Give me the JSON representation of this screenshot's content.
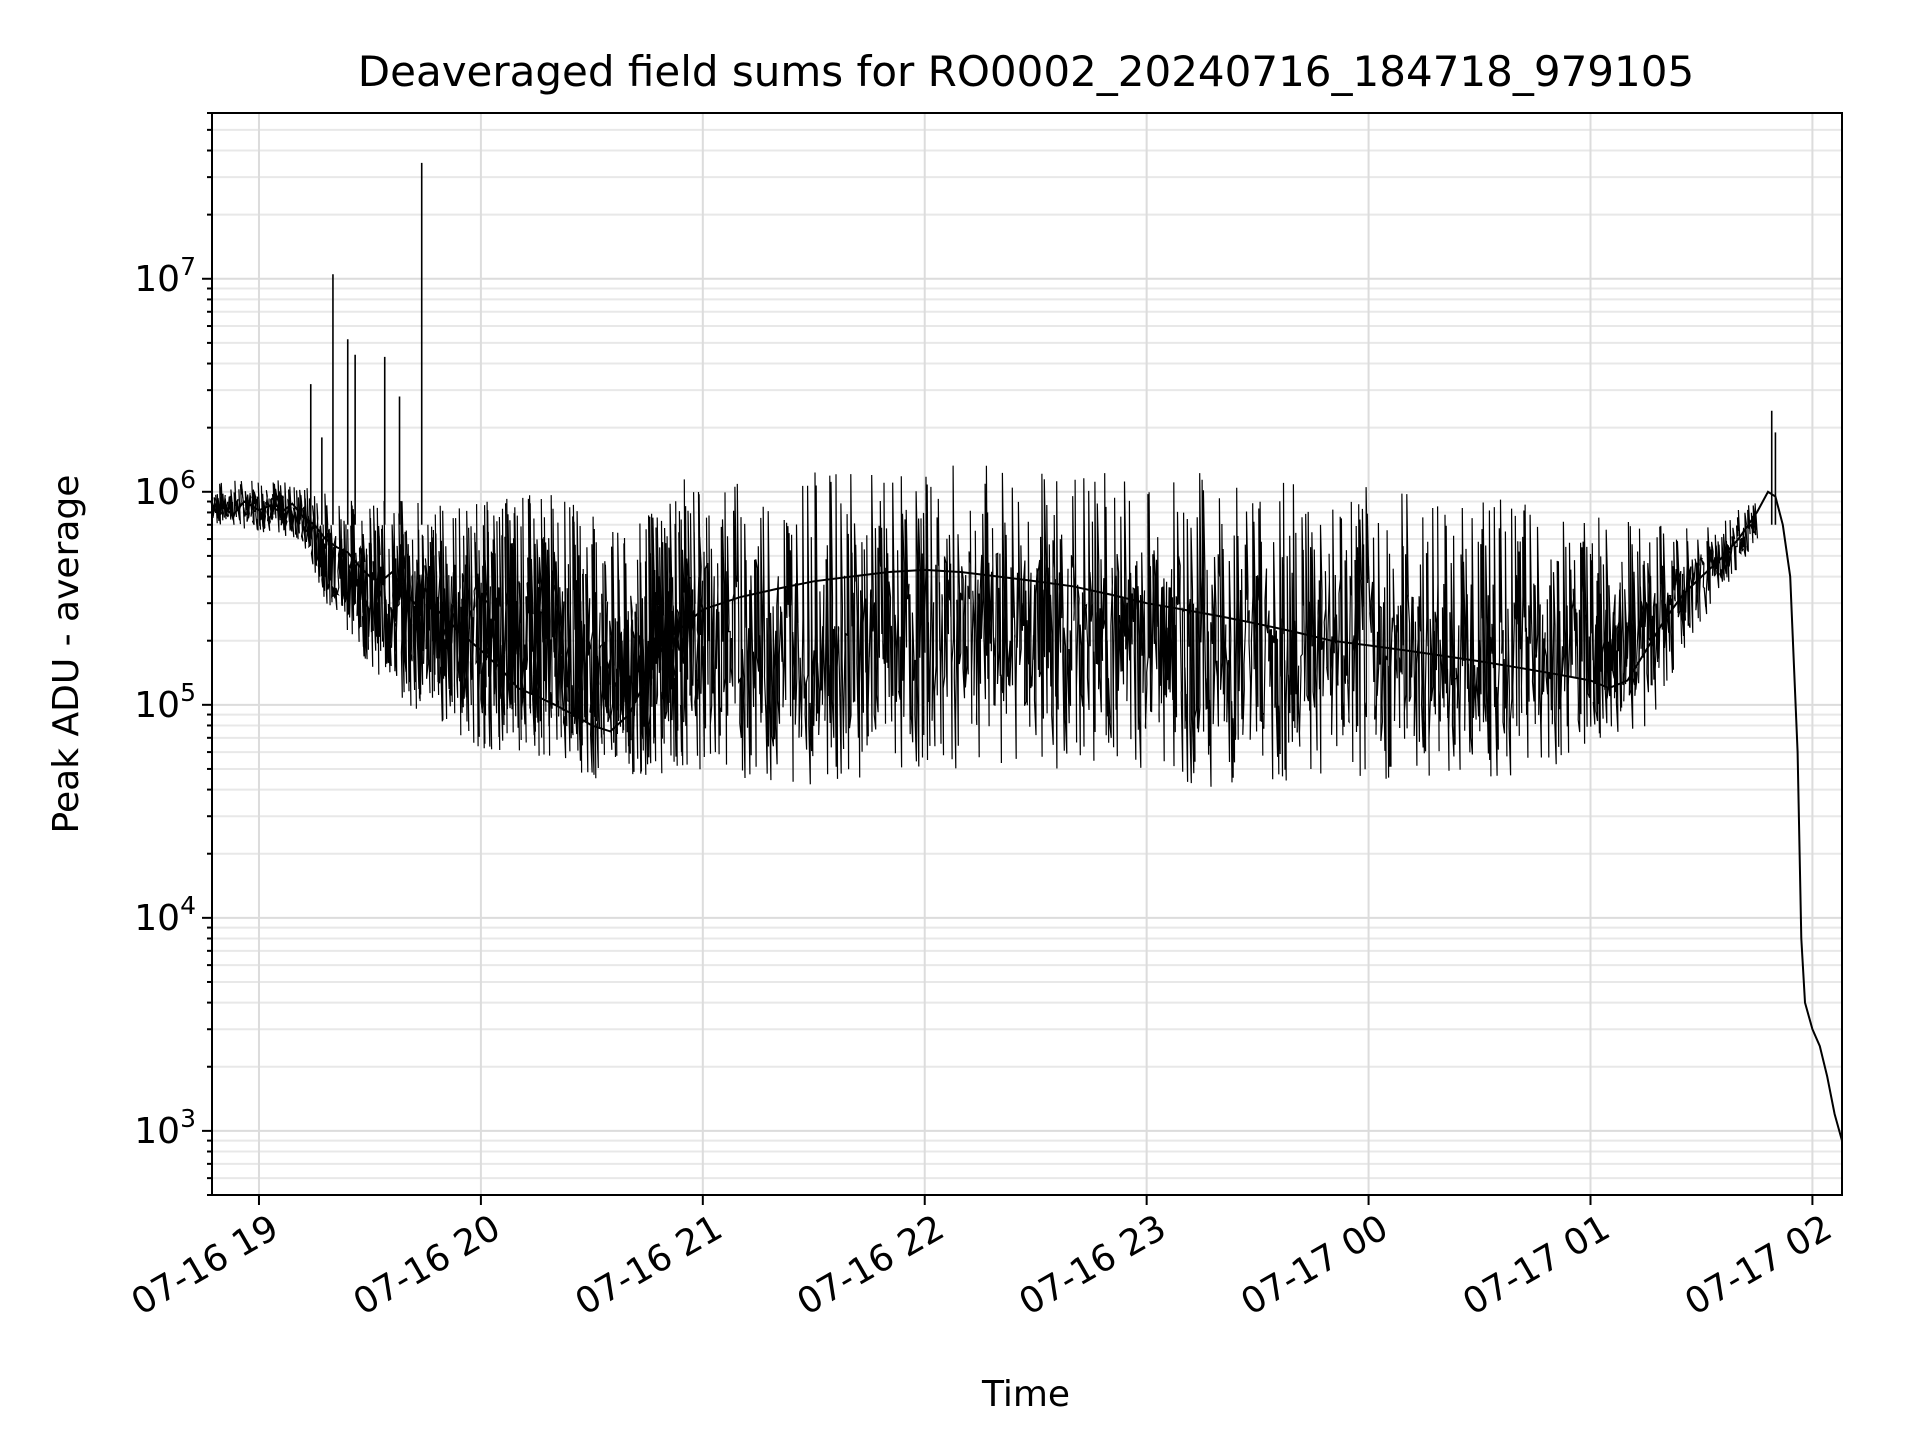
{
  "chart_data": {
    "type": "line",
    "title": "Deaveraged field sums for RO0002_20240716_184718_979105",
    "xlabel": "Time",
    "ylabel": "Peak ADU - average",
    "y_scale": "log",
    "ylim": [
      500,
      60000000
    ],
    "xlim": [
      "2024-07-16 18:47:18",
      "2024-07-17 02:08:00"
    ],
    "grid": true,
    "line_color": "#000000",
    "x_ticks": [
      {
        "label": "07-16 19",
        "value": "2024-07-16 19:00"
      },
      {
        "label": "07-16 20",
        "value": "2024-07-16 20:00"
      },
      {
        "label": "07-16 21",
        "value": "2024-07-16 21:00"
      },
      {
        "label": "07-16 22",
        "value": "2024-07-16 22:00"
      },
      {
        "label": "07-16 23",
        "value": "2024-07-16 23:00"
      },
      {
        "label": "07-17 00",
        "value": "2024-07-17 00:00"
      },
      {
        "label": "07-17 01",
        "value": "2024-07-17 01:00"
      },
      {
        "label": "07-17 02",
        "value": "2024-07-17 02:00"
      }
    ],
    "y_ticks": [
      {
        "base": "10",
        "exp": "3",
        "value": 1000
      },
      {
        "base": "10",
        "exp": "4",
        "value": 10000
      },
      {
        "base": "10",
        "exp": "5",
        "value": 100000
      },
      {
        "base": "10",
        "exp": "6",
        "value": 1000000
      },
      {
        "base": "10",
        "exp": "7",
        "value": 10000000
      }
    ],
    "series": [
      {
        "points": [
          [
            "2024-07-16 18:47",
            800000
          ],
          [
            "2024-07-16 18:50",
            850000
          ],
          [
            "2024-07-16 18:53",
            780000
          ],
          [
            "2024-07-16 18:56",
            900000
          ],
          [
            "2024-07-16 19:00",
            820000
          ],
          [
            "2024-07-16 19:03",
            860000
          ],
          [
            "2024-07-16 19:06",
            800000
          ],
          [
            "2024-07-16 19:09",
            880000
          ],
          [
            "2024-07-16 19:12",
            760000
          ],
          [
            "2024-07-16 19:15",
            700000
          ],
          [
            "2024-07-16 19:18",
            600000
          ],
          [
            "2024-07-16 19:21",
            550000
          ],
          [
            "2024-07-16 19:24",
            520000
          ],
          [
            "2024-07-16 19:27",
            450000
          ],
          [
            "2024-07-16 19:30",
            400000
          ],
          [
            "2024-07-16 19:33",
            380000
          ],
          [
            "2024-07-16 19:36",
            420000
          ],
          [
            "2024-07-16 19:39",
            350000
          ],
          [
            "2024-07-16 19:42",
            300000
          ],
          [
            "2024-07-16 19:45",
            350000
          ],
          [
            "2024-07-16 19:48",
            280000
          ],
          [
            "2024-07-16 19:51",
            250000
          ],
          [
            "2024-07-16 19:54",
            220000
          ],
          [
            "2024-07-16 19:57",
            200000
          ],
          [
            "2024-07-16 20:00",
            180000
          ],
          [
            "2024-07-16 20:05",
            150000
          ],
          [
            "2024-07-16 20:10",
            120000
          ],
          [
            "2024-07-16 20:15",
            110000
          ],
          [
            "2024-07-16 20:20",
            100000
          ],
          [
            "2024-07-16 20:25",
            90000
          ],
          [
            "2024-07-16 20:30",
            80000
          ],
          [
            "2024-07-16 20:35",
            75000
          ],
          [
            "2024-07-16 20:40",
            90000
          ],
          [
            "2024-07-16 20:50",
            200000
          ],
          [
            "2024-07-16 21:00",
            280000
          ],
          [
            "2024-07-16 21:10",
            320000
          ],
          [
            "2024-07-16 21:20",
            350000
          ],
          [
            "2024-07-16 21:30",
            380000
          ],
          [
            "2024-07-16 21:40",
            400000
          ],
          [
            "2024-07-16 21:50",
            420000
          ],
          [
            "2024-07-16 22:00",
            430000
          ],
          [
            "2024-07-16 22:10",
            420000
          ],
          [
            "2024-07-16 22:20",
            400000
          ],
          [
            "2024-07-16 22:30",
            380000
          ],
          [
            "2024-07-16 22:40",
            360000
          ],
          [
            "2024-07-16 22:50",
            330000
          ],
          [
            "2024-07-16 23:00",
            300000
          ],
          [
            "2024-07-16 23:10",
            280000
          ],
          [
            "2024-07-16 23:20",
            260000
          ],
          [
            "2024-07-16 23:30",
            240000
          ],
          [
            "2024-07-16 23:40",
            220000
          ],
          [
            "2024-07-16 23:50",
            200000
          ],
          [
            "2024-07-17 00:00",
            190000
          ],
          [
            "2024-07-17 00:10",
            180000
          ],
          [
            "2024-07-17 00:20",
            170000
          ],
          [
            "2024-07-17 00:30",
            160000
          ],
          [
            "2024-07-17 00:40",
            150000
          ],
          [
            "2024-07-17 00:50",
            140000
          ],
          [
            "2024-07-17 01:00",
            130000
          ],
          [
            "2024-07-17 01:05",
            120000
          ],
          [
            "2024-07-17 01:10",
            130000
          ],
          [
            "2024-07-17 01:15",
            180000
          ],
          [
            "2024-07-17 01:20",
            250000
          ],
          [
            "2024-07-17 01:25",
            330000
          ],
          [
            "2024-07-17 01:30",
            400000
          ],
          [
            "2024-07-17 01:35",
            480000
          ],
          [
            "2024-07-17 01:40",
            600000
          ],
          [
            "2024-07-17 01:45",
            800000
          ],
          [
            "2024-07-17 01:48",
            1000000
          ],
          [
            "2024-07-17 01:50",
            950000
          ],
          [
            "2024-07-17 01:52",
            700000
          ],
          [
            "2024-07-17 01:54",
            400000
          ],
          [
            "2024-07-17 01:56",
            60000
          ],
          [
            "2024-07-17 01:57",
            8000
          ],
          [
            "2024-07-17 01:58",
            4000
          ],
          [
            "2024-07-17 02:00",
            3000
          ],
          [
            "2024-07-17 02:02",
            2500
          ],
          [
            "2024-07-17 02:04",
            1800
          ],
          [
            "2024-07-17 02:06",
            1200
          ],
          [
            "2024-07-17 02:08",
            900
          ]
        ],
        "spikes": [
          [
            "2024-07-16 19:14",
            3200000
          ],
          [
            "2024-07-16 19:17",
            1800000
          ],
          [
            "2024-07-16 19:20",
            10500000
          ],
          [
            "2024-07-16 19:24",
            5200000
          ],
          [
            "2024-07-16 19:26",
            4400000
          ],
          [
            "2024-07-16 19:34",
            4300000
          ],
          [
            "2024-07-16 19:38",
            2800000
          ],
          [
            "2024-07-16 19:44",
            35000000
          ],
          [
            "2024-07-17 01:49",
            2400000
          ],
          [
            "2024-07-17 01:50",
            1900000
          ]
        ],
        "envelope": [
          [
            "2024-07-16 18:47",
            1100000,
            700000
          ],
          [
            "2024-07-16 19:00",
            1200000,
            650000
          ],
          [
            "2024-07-16 19:10",
            1100000,
            600000
          ],
          [
            "2024-07-16 19:20",
            1000000,
            250000
          ],
          [
            "2024-07-16 19:30",
            900000,
            150000
          ],
          [
            "2024-07-16 19:40",
            950000,
            100000
          ],
          [
            "2024-07-16 19:50",
            900000,
            80000
          ],
          [
            "2024-07-16 20:00",
            900000,
            60000
          ],
          [
            "2024-07-16 20:10",
            1000000,
            60000
          ],
          [
            "2024-07-16 20:20",
            1000000,
            55000
          ],
          [
            "2024-07-16 20:30",
            800000,
            45000
          ],
          [
            "2024-07-16 20:40",
            600000,
            45000
          ],
          [
            "2024-07-16 20:50",
            1100000,
            48000
          ],
          [
            "2024-07-16 21:00",
            1200000,
            50000
          ],
          [
            "2024-07-16 21:20",
            1250000,
            40000
          ],
          [
            "2024-07-16 21:40",
            1250000,
            45000
          ],
          [
            "2024-07-16 22:00",
            1300000,
            50000
          ],
          [
            "2024-07-16 22:20",
            1400000,
            50000
          ],
          [
            "2024-07-16 22:40",
            1300000,
            50000
          ],
          [
            "2024-07-16 23:00",
            1300000,
            45000
          ],
          [
            "2024-07-16 23:20",
            1250000,
            40000
          ],
          [
            "2024-07-16 23:40",
            1200000,
            40000
          ],
          [
            "2024-07-17 00:00",
            1100000,
            40000
          ],
          [
            "2024-07-17 00:20",
            1000000,
            42000
          ],
          [
            "2024-07-17 00:40",
            900000,
            45000
          ],
          [
            "2024-07-17 01:00",
            800000,
            55000
          ],
          [
            "2024-07-17 01:15",
            700000,
            80000
          ],
          [
            "2024-07-17 01:30",
            700000,
            250000
          ],
          [
            "2024-07-17 01:45",
            900000,
            600000
          ]
        ]
      }
    ]
  }
}
